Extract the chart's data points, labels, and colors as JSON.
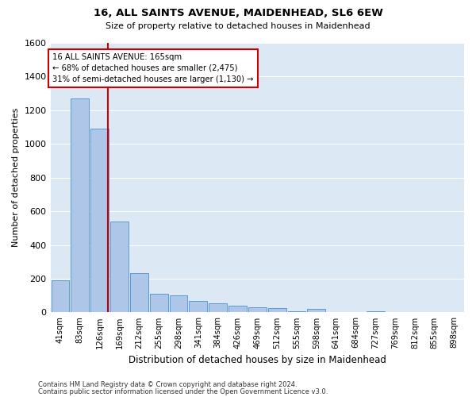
{
  "title": "16, ALL SAINTS AVENUE, MAIDENHEAD, SL6 6EW",
  "subtitle": "Size of property relative to detached houses in Maidenhead",
  "xlabel": "Distribution of detached houses by size in Maidenhead",
  "ylabel": "Number of detached properties",
  "bin_labels": [
    "41sqm",
    "83sqm",
    "126sqm",
    "169sqm",
    "212sqm",
    "255sqm",
    "298sqm",
    "341sqm",
    "384sqm",
    "426sqm",
    "469sqm",
    "512sqm",
    "555sqm",
    "598sqm",
    "641sqm",
    "684sqm",
    "727sqm",
    "769sqm",
    "812sqm",
    "855sqm",
    "898sqm"
  ],
  "bar_heights": [
    190,
    1270,
    1090,
    540,
    235,
    110,
    100,
    70,
    55,
    40,
    30,
    25,
    5,
    20,
    0,
    0,
    5,
    0,
    0,
    0,
    0
  ],
  "bar_color": "#aec6e8",
  "bar_edgecolor": "#5b9bd5",
  "bar_linewidth": 0.7,
  "background_color": "#dce9f5",
  "grid_color": "#ffffff",
  "property_line_color": "#cc0000",
  "ylim": [
    0,
    1600
  ],
  "yticks": [
    0,
    200,
    400,
    600,
    800,
    1000,
    1200,
    1400,
    1600
  ],
  "annotation_line1": "16 ALL SAINTS AVENUE: 165sqm",
  "annotation_line2": "← 68% of detached houses are smaller (2,475)",
  "annotation_line3": "31% of semi-detached houses are larger (1,130) →",
  "annotation_box_color": "#ffffff",
  "annotation_box_edgecolor": "#cc0000",
  "footnote1": "Contains HM Land Registry data © Crown copyright and database right 2024.",
  "footnote2": "Contains public sector information licensed under the Open Government Licence v3.0."
}
